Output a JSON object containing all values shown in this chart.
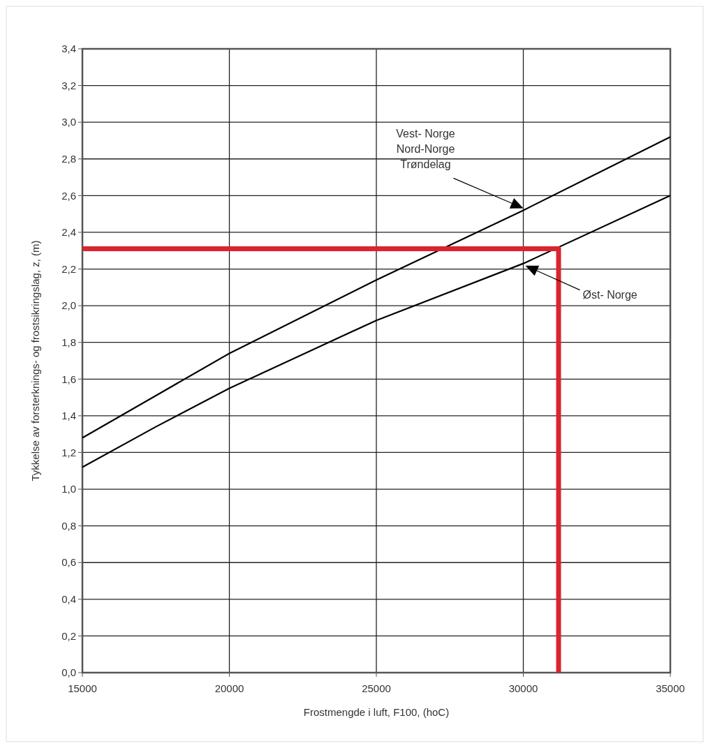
{
  "chart_data": {
    "type": "line",
    "xlabel": "Frostmengde i luft, F100, (hoC)",
    "ylabel": "Tykkelse av forsterknings- og frostsikringslag, z, (m)",
    "xlim": [
      15000,
      35000
    ],
    "xticks": [
      15000,
      20000,
      25000,
      30000,
      35000
    ],
    "ylim": [
      0,
      3.4
    ],
    "yticks": [
      {
        "value": 0,
        "label": "0,0"
      },
      {
        "value": 0.2,
        "label": "0,2"
      },
      {
        "value": 0.4,
        "label": "0,4"
      },
      {
        "value": 0.6,
        "label": "0,6"
      },
      {
        "value": 0.8,
        "label": "0,8"
      },
      {
        "value": 1.0,
        "label": "1,0"
      },
      {
        "value": 1.2,
        "label": "1,2"
      },
      {
        "value": 1.4,
        "label": "1,4"
      },
      {
        "value": 1.6,
        "label": "1,6"
      },
      {
        "value": 1.8,
        "label": "1,8"
      },
      {
        "value": 2.0,
        "label": "2,0"
      },
      {
        "value": 2.2,
        "label": "2,2"
      },
      {
        "value": 2.4,
        "label": "2,4"
      },
      {
        "value": 2.6,
        "label": "2,6"
      },
      {
        "value": 2.8,
        "label": "2,8"
      },
      {
        "value": 3.0,
        "label": "3,0"
      },
      {
        "value": 3.2,
        "label": "3,2"
      },
      {
        "value": 3.4,
        "label": "3,4"
      }
    ],
    "grid": true,
    "series": [
      {
        "color": "#000000",
        "x": [
          15000,
          17500,
          20000,
          25000,
          30000,
          35000
        ],
        "values": [
          1.28,
          1.51,
          1.74,
          2.14,
          2.52,
          2.92
        ]
      },
      {
        "color": "#000000",
        "x": [
          15000,
          17500,
          20000,
          25000,
          30000,
          35000
        ],
        "values": [
          1.12,
          1.34,
          1.55,
          1.92,
          2.23,
          2.6
        ]
      },
      {
        "color": "#d9252f",
        "x": [
          15000,
          31200,
          31200
        ],
        "values": [
          2.31,
          2.31,
          0
        ]
      }
    ],
    "annotations": [
      "Vest- Norge\nNord-Norge\nTrøndelag",
      "Øst- Norge"
    ]
  }
}
